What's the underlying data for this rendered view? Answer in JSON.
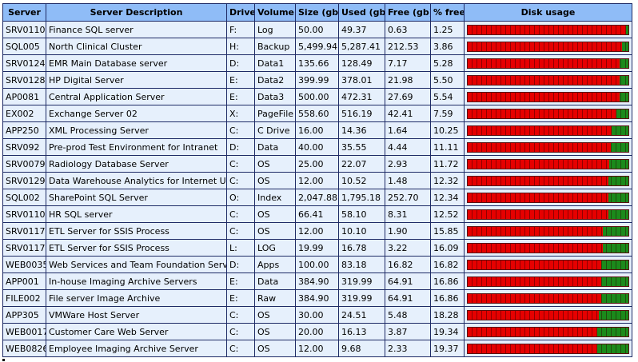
{
  "headers": {
    "server": "Server",
    "description": "Server Description",
    "drive": "Drive",
    "volume": "Volume",
    "size": "Size (gb)",
    "used": "Used (gb)",
    "free": "Free (gb)",
    "pct_free": "% free",
    "usage": "Disk usage"
  },
  "colors": {
    "used": "#e60000",
    "free": "#1b8a1b",
    "header_bg": "#8fbcf7",
    "cell_bg": "#e6f0fc"
  },
  "rows": [
    {
      "server": "SRV0110",
      "description": "Finance SQL server",
      "drive": "F:",
      "volume": "Log",
      "size": "50.00",
      "used": "49.37",
      "free": "0.63",
      "pct_free": "1.25"
    },
    {
      "server": "SQL005",
      "description": "North Clinical Cluster",
      "drive": "H:",
      "volume": "Backup",
      "size": "5,499.94",
      "used": "5,287.41",
      "free": "212.53",
      "pct_free": "3.86"
    },
    {
      "server": "SRV0124",
      "description": "EMR Main Database server",
      "drive": "D:",
      "volume": "Data1",
      "size": "135.66",
      "used": "128.49",
      "free": "7.17",
      "pct_free": "5.28"
    },
    {
      "server": "SRV0128",
      "description": "HP Digital Server",
      "drive": "E:",
      "volume": "Data2",
      "size": "399.99",
      "used": "378.01",
      "free": "21.98",
      "pct_free": "5.50"
    },
    {
      "server": "AP0081",
      "description": "Central Application Server",
      "drive": "E:",
      "volume": "Data3",
      "size": "500.00",
      "used": "472.31",
      "free": "27.69",
      "pct_free": "5.54"
    },
    {
      "server": "EX002",
      "description": "Exchange Server 02",
      "drive": "X:",
      "volume": "PageFile",
      "size": "558.60",
      "used": "516.19",
      "free": "42.41",
      "pct_free": "7.59"
    },
    {
      "server": "APP250",
      "description": "XML Processing Server",
      "drive": "C:",
      "volume": "C Drive",
      "size": "16.00",
      "used": "14.36",
      "free": "1.64",
      "pct_free": "10.25"
    },
    {
      "server": "SRV092",
      "description": "Pre-prod Test Environment for Intranet",
      "drive": "D:",
      "volume": "Data",
      "size": "40.00",
      "used": "35.55",
      "free": "4.44",
      "pct_free": "11.11"
    },
    {
      "server": "SRV0079",
      "description": "Radiology Database Server",
      "drive": "C:",
      "volume": "OS",
      "size": "25.00",
      "used": "22.07",
      "free": "2.93",
      "pct_free": "11.72"
    },
    {
      "server": "SRV0129",
      "description": "Data Warehouse Analytics for Internet Usage",
      "drive": "C:",
      "volume": "OS",
      "size": "12.00",
      "used": "10.52",
      "free": "1.48",
      "pct_free": "12.32"
    },
    {
      "server": "SQL002",
      "description": "SharePoint SQL Server",
      "drive": "O:",
      "volume": "Index",
      "size": "2,047.88",
      "used": "1,795.18",
      "free": "252.70",
      "pct_free": "12.34"
    },
    {
      "server": "SRV0110",
      "description": "HR SQL server",
      "drive": "C:",
      "volume": "OS",
      "size": "66.41",
      "used": "58.10",
      "free": "8.31",
      "pct_free": "12.52"
    },
    {
      "server": "SRV0117",
      "description": "ETL Server for SSIS Process",
      "drive": "C:",
      "volume": "OS",
      "size": "12.00",
      "used": "10.10",
      "free": "1.90",
      "pct_free": "15.85"
    },
    {
      "server": "SRV0117",
      "description": "ETL Server for SSIS Process",
      "drive": "L:",
      "volume": "LOG",
      "size": "19.99",
      "used": "16.78",
      "free": "3.22",
      "pct_free": "16.09"
    },
    {
      "server": "WEB0035",
      "description": "Web Services and Team Foundation Server",
      "drive": "D:",
      "volume": "Apps",
      "size": "100.00",
      "used": "83.18",
      "free": "16.82",
      "pct_free": "16.82"
    },
    {
      "server": "APP001",
      "description": "In-house Imaging Archive Servers",
      "drive": "E:",
      "volume": "Data",
      "size": "384.90",
      "used": "319.99",
      "free": "64.91",
      "pct_free": "16.86"
    },
    {
      "server": "FILE002",
      "description": "File server Image Archive",
      "drive": "E:",
      "volume": "Raw",
      "size": "384.90",
      "used": "319.99",
      "free": "64.91",
      "pct_free": "16.86"
    },
    {
      "server": "APP305",
      "description": "VMWare Host Server",
      "drive": "C:",
      "volume": "OS",
      "size": "30.00",
      "used": "24.51",
      "free": "5.48",
      "pct_free": "18.28"
    },
    {
      "server": "WEB0017",
      "description": "Customer Care Web Server",
      "drive": "C:",
      "volume": "OS",
      "size": "20.00",
      "used": "16.13",
      "free": "3.87",
      "pct_free": "19.34"
    },
    {
      "server": "WEB0826",
      "description": "Employee Imaging Archive Server",
      "drive": "C:",
      "volume": "OS",
      "size": "12.00",
      "used": "9.68",
      "free": "2.33",
      "pct_free": "19.37"
    }
  ]
}
